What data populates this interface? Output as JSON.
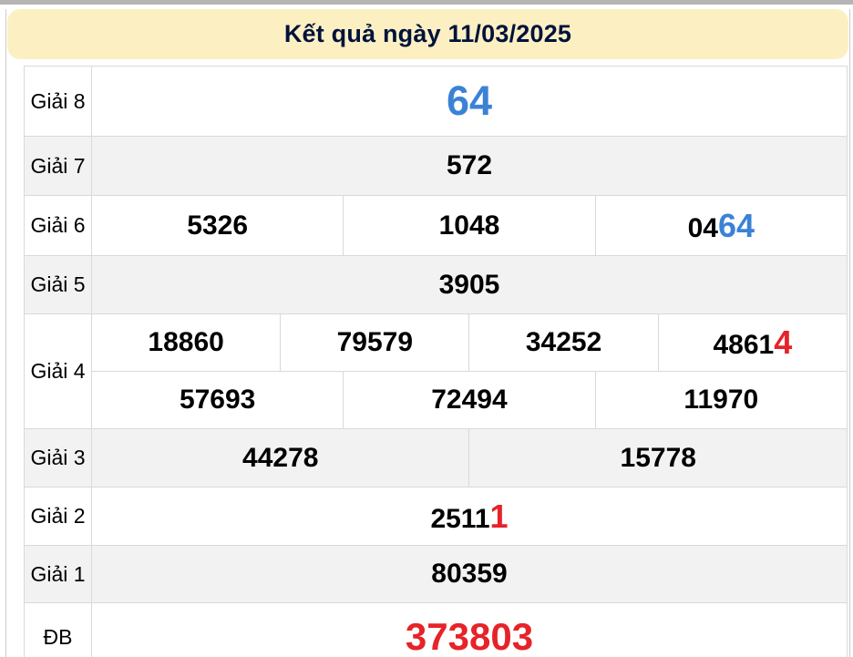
{
  "page": {
    "title": "Kết quả ngày 11/03/2025"
  },
  "colors": {
    "banner_bg": "#fcf0c3",
    "title_text": "#00123c",
    "highlight_blue": "#3b82d6",
    "highlight_red": "#e62329",
    "row_alt_bg": "#f2f2f2",
    "cell_border": "#d9d9d9",
    "number_text": "#000000"
  },
  "results": {
    "g8": {
      "label": "Giải 8",
      "value": "64"
    },
    "g7": {
      "label": "Giải 7",
      "value": "572"
    },
    "g6": {
      "label": "Giải 6",
      "c1": "5326",
      "c2": "1048",
      "c3_main": "04",
      "c3_hl": "64"
    },
    "g5": {
      "label": "Giải 5",
      "value": "3905"
    },
    "g4": {
      "label": "Giải 4",
      "r1c1": "18860",
      "r1c2": "79579",
      "r1c3": "34252",
      "r1c4_main": "4861",
      "r1c4_hl": "4",
      "r2c1": "57693",
      "r2c2": "72494",
      "r2c3": "11970"
    },
    "g3": {
      "label": "Giải 3",
      "c1": "44278",
      "c2": "15778"
    },
    "g2": {
      "label": "Giải 2",
      "main": "2511",
      "hl": "1"
    },
    "g1": {
      "label": "Giải 1",
      "value": "80359"
    },
    "db": {
      "label": "ĐB",
      "value": "373803"
    }
  }
}
